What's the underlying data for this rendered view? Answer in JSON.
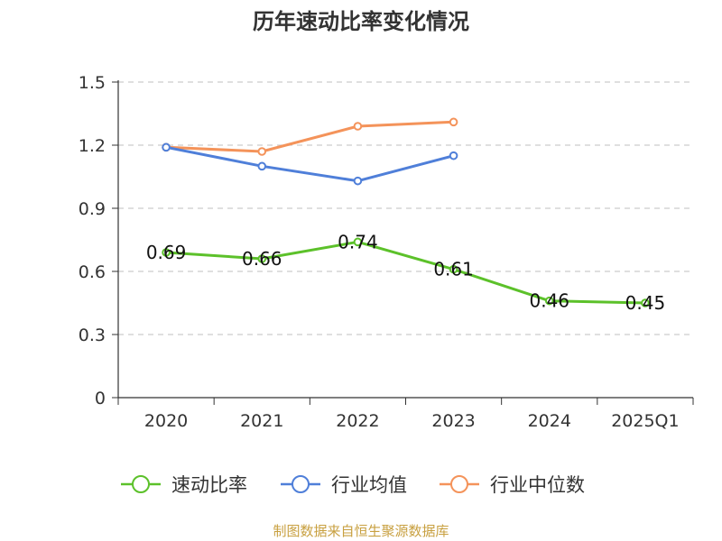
{
  "title": "历年速动比率变化情况",
  "source": "制图数据来自恒生聚源数据库",
  "chart_data": {
    "type": "line",
    "title": "历年速动比率变化情况",
    "categories": [
      "2020",
      "2021",
      "2022",
      "2023",
      "2024",
      "2025Q1"
    ],
    "ylim": [
      0,
      1.5
    ],
    "yticks": [
      "0",
      "0.3",
      "0.6",
      "0.9",
      "1.2",
      "1.5"
    ],
    "grid": true,
    "legend_position": "bottom",
    "series": [
      {
        "name": "速动比率",
        "color": "#5cc12a",
        "values": [
          0.69,
          0.66,
          0.74,
          0.61,
          0.46,
          0.45
        ],
        "labels": [
          "0.69",
          "0.66",
          "0.74",
          "0.61",
          "0.46",
          "0.45"
        ]
      },
      {
        "name": "行业均值",
        "color": "#4f7fd9",
        "values": [
          1.19,
          1.1,
          1.03,
          1.15,
          null,
          null
        ]
      },
      {
        "name": "行业中位数",
        "color": "#f4935a",
        "values": [
          1.19,
          1.17,
          1.29,
          1.31,
          null,
          null
        ]
      }
    ]
  }
}
